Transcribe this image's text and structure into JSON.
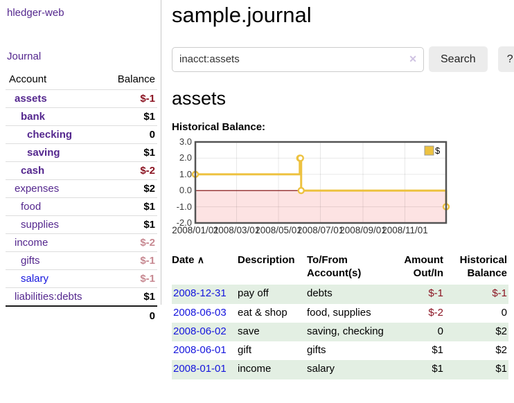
{
  "sidebar": {
    "brand": "hledger-web",
    "journal_link": "Journal",
    "accounts_table": {
      "headers": {
        "account": "Account",
        "balance": "Balance"
      },
      "rows": [
        {
          "name": "assets",
          "depth": 0,
          "balance": "$-1",
          "emph": true,
          "neg": "strong"
        },
        {
          "name": "bank",
          "depth": 1,
          "balance": "$1",
          "emph": true,
          "neg": null
        },
        {
          "name": "checking",
          "depth": 2,
          "balance": "0",
          "emph": true,
          "neg": null
        },
        {
          "name": "saving",
          "depth": 2,
          "balance": "$1",
          "emph": true,
          "neg": null
        },
        {
          "name": "cash",
          "depth": 1,
          "balance": "$-2",
          "emph": true,
          "neg": "strong"
        },
        {
          "name": "expenses",
          "depth": 0,
          "balance": "$2",
          "emph": false,
          "neg": null
        },
        {
          "name": "food",
          "depth": 1,
          "balance": "$1",
          "emph": false,
          "neg": null
        },
        {
          "name": "supplies",
          "depth": 1,
          "balance": "$1",
          "emph": false,
          "neg": null
        },
        {
          "name": "income",
          "depth": 0,
          "balance": "$-2",
          "emph": false,
          "neg": "faded"
        },
        {
          "name": "gifts",
          "depth": 1,
          "balance": "$-1",
          "emph": false,
          "neg": "faded"
        },
        {
          "name": "salary",
          "depth": 1,
          "balance": "$-1",
          "emph": false,
          "neg": "faded",
          "blue": true
        },
        {
          "name": "liabilities:debts",
          "depth": 0,
          "balance": "$1",
          "emph": false,
          "neg": null
        }
      ],
      "total": "0"
    }
  },
  "header": {
    "title": "sample.journal"
  },
  "search": {
    "value": "inacct:assets",
    "clear_icon": "✕",
    "button_label": "Search",
    "help_label": "?"
  },
  "account_page": {
    "heading": "assets",
    "chart_label": "Historical Balance:"
  },
  "chart_data": {
    "type": "line",
    "step": true,
    "title": "Historical Balance:",
    "series": [
      {
        "name": "$",
        "color": "#edc240",
        "points": [
          [
            "2008-01-01",
            1
          ],
          [
            "2008-06-01",
            2
          ],
          [
            "2008-06-02",
            2
          ],
          [
            "2008-06-03",
            0
          ],
          [
            "2008-12-31",
            -1
          ]
        ]
      }
    ],
    "x_range": [
      "2008-01-01",
      "2008-12-31"
    ],
    "x_ticks": [
      "2008/01/01",
      "2008/03/01",
      "2008/05/01",
      "2008/07/01",
      "2008/09/01",
      "2008/11/01"
    ],
    "y_ticks": [
      "3.0",
      "2.0",
      "1.0",
      "0.0",
      "-1.0",
      "-2.0"
    ],
    "ylim": [
      -2,
      3
    ],
    "grid": true,
    "legend_position": "top-right",
    "colors": {
      "border": "#545454",
      "gridline": "rgba(0,0,0,0.09)",
      "zero_line": "#7a0000",
      "negative_region": "#fde3e3",
      "marker_fill": "#ffffff"
    }
  },
  "register": {
    "columns": [
      "Date",
      "Description",
      "To/From Account(s)",
      "Amount Out/In",
      "Historical Balance"
    ],
    "sort_icon": "∧",
    "rows": [
      {
        "date": "2008-12-31",
        "description": "pay off",
        "accounts": "debts",
        "amount": "$-1",
        "amount_neg": true,
        "balance": "$-1",
        "balance_neg": true
      },
      {
        "date": "2008-06-03",
        "description": "eat & shop",
        "accounts": "food, supplies",
        "amount": "$-2",
        "amount_neg": true,
        "balance": "0",
        "balance_neg": false
      },
      {
        "date": "2008-06-02",
        "description": "save",
        "accounts": "saving, checking",
        "amount": "0",
        "amount_neg": false,
        "balance": "$2",
        "balance_neg": false
      },
      {
        "date": "2008-06-01",
        "description": "gift",
        "accounts": "gifts",
        "amount": "$1",
        "amount_neg": false,
        "balance": "$2",
        "balance_neg": false
      },
      {
        "date": "2008-01-01",
        "description": "income",
        "accounts": "salary",
        "amount": "$1",
        "amount_neg": false,
        "balance": "$1",
        "balance_neg": false
      }
    ]
  },
  "colors": {
    "link_purple": "#54278e",
    "link_blue": "#1414dd",
    "negative_strong": "#8b1422",
    "negative_faded": "#c78891",
    "row_green": "#e3efe3",
    "series_gold": "#edc240"
  }
}
